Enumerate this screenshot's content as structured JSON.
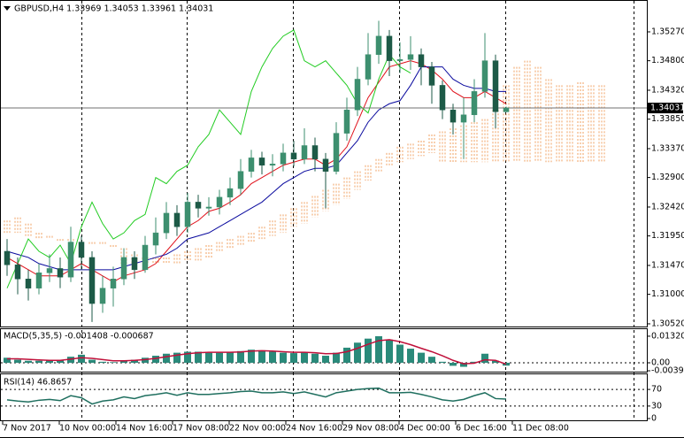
{
  "chart_data": [
    {
      "type": "candlestick",
      "title": "GBPUSD,H4  1.33969 1.34053 1.33961 1.34031",
      "open": [
        1.317,
        1.3148,
        1.3125,
        1.311,
        1.3135,
        1.3142,
        1.3128,
        1.3185,
        1.316,
        1.3085,
        1.311,
        1.3125,
        1.316,
        1.314,
        1.318,
        1.32,
        1.3232,
        1.321,
        1.325,
        1.324,
        1.3242,
        1.3258,
        1.3272,
        1.33,
        1.3322,
        1.331,
        1.3312,
        1.333,
        1.332,
        1.3342,
        1.332,
        1.33,
        1.3362,
        1.34,
        1.345,
        1.349,
        1.352,
        1.348,
        1.3482,
        1.349,
        1.347,
        1.344,
        1.34,
        1.338,
        1.3392,
        1.343,
        1.348,
        1.33969
      ],
      "high": [
        1.319,
        1.316,
        1.314,
        1.315,
        1.3165,
        1.316,
        1.321,
        1.3195,
        1.317,
        1.313,
        1.3145,
        1.3175,
        1.317,
        1.3195,
        1.3225,
        1.325,
        1.3245,
        1.3265,
        1.3262,
        1.3258,
        1.327,
        1.329,
        1.332,
        1.3335,
        1.3332,
        1.3328,
        1.3345,
        1.335,
        1.337,
        1.3355,
        1.333,
        1.338,
        1.342,
        1.347,
        1.3525,
        1.3545,
        1.353,
        1.351,
        1.352,
        1.35,
        1.3478,
        1.3448,
        1.341,
        1.342,
        1.345,
        1.3525,
        1.349,
        1.34053
      ],
      "low": [
        1.313,
        1.31,
        1.309,
        1.31,
        1.312,
        1.311,
        1.312,
        1.314,
        1.3055,
        1.307,
        1.308,
        1.3115,
        1.3125,
        1.3135,
        1.3165,
        1.319,
        1.3195,
        1.32,
        1.3225,
        1.3228,
        1.323,
        1.3245,
        1.3262,
        1.329,
        1.3295,
        1.3292,
        1.33,
        1.3308,
        1.3312,
        1.33,
        1.324,
        1.3295,
        1.335,
        1.339,
        1.344,
        1.3475,
        1.3455,
        1.346,
        1.3465,
        1.344,
        1.341,
        1.3385,
        1.336,
        1.332,
        1.338,
        1.342,
        1.337,
        1.33961
      ],
      "close": [
        1.3148,
        1.3125,
        1.311,
        1.3135,
        1.3142,
        1.3128,
        1.3185,
        1.316,
        1.3085,
        1.311,
        1.3125,
        1.316,
        1.314,
        1.318,
        1.32,
        1.3232,
        1.321,
        1.325,
        1.324,
        1.3242,
        1.3258,
        1.3272,
        1.33,
        1.3322,
        1.331,
        1.3312,
        1.333,
        1.332,
        1.3342,
        1.332,
        1.33,
        1.3362,
        1.34,
        1.345,
        1.349,
        1.352,
        1.348,
        1.3482,
        1.349,
        1.347,
        1.344,
        1.34,
        1.338,
        1.3392,
        1.343,
        1.348,
        1.3397,
        1.34031
      ],
      "up_color": "#3d8f6f",
      "down_color": "#1d5a47",
      "current_price": 1.34031,
      "ylim": [
        1.30462,
        1.35788
      ],
      "yticks": [
        {
          "value": 1.3527,
          "label": "1.35270"
        },
        {
          "value": 1.348,
          "label": "1.34800"
        },
        {
          "value": 1.3432,
          "label": "1.34320"
        },
        {
          "value": 1.3385,
          "label": "1.33850"
        },
        {
          "value": 1.3337,
          "label": "1.33370"
        },
        {
          "value": 1.329,
          "label": "1.32900"
        },
        {
          "value": 1.3242,
          "label": "1.32420"
        },
        {
          "value": 1.3195,
          "label": "1.31950"
        },
        {
          "value": 1.3147,
          "label": "1.31470"
        },
        {
          "value": 1.31,
          "label": "1.31000"
        },
        {
          "value": 1.3052,
          "label": "1.30520"
        }
      ],
      "series": [
        {
          "color": "#e0101a",
          "values": [
            1.316,
            1.315,
            1.314,
            1.313,
            1.313,
            1.313,
            1.314,
            1.315,
            1.314,
            1.313,
            1.312,
            1.313,
            1.3135,
            1.314,
            1.315,
            1.317,
            1.319,
            1.321,
            1.322,
            1.3235,
            1.324,
            1.325,
            1.3262,
            1.328,
            1.329,
            1.33,
            1.331,
            1.3315,
            1.332,
            1.332,
            1.331,
            1.332,
            1.334,
            1.338,
            1.342,
            1.3445,
            1.347,
            1.3475,
            1.348,
            1.3475,
            1.3465,
            1.345,
            1.343,
            1.342,
            1.342,
            1.343,
            1.342,
            1.341
          ]
        },
        {
          "color": "#0a0a9e",
          "values": [
            1.317,
            1.3165,
            1.316,
            1.315,
            1.3145,
            1.314,
            1.314,
            1.314,
            1.314,
            1.314,
            1.314,
            1.3145,
            1.315,
            1.3155,
            1.316,
            1.3165,
            1.3175,
            1.319,
            1.3195,
            1.32,
            1.321,
            1.322,
            1.323,
            1.324,
            1.325,
            1.3265,
            1.328,
            1.329,
            1.33,
            1.3305,
            1.3305,
            1.331,
            1.333,
            1.335,
            1.338,
            1.34,
            1.341,
            1.3415,
            1.344,
            1.347,
            1.347,
            1.347,
            1.345,
            1.344,
            1.3435,
            1.3435,
            1.343,
            1.343
          ]
        },
        {
          "color": "#22cc22",
          "values": [
            1.311,
            1.315,
            1.319,
            1.317,
            1.316,
            1.318,
            1.315,
            1.321,
            1.325,
            1.3215,
            1.319,
            1.32,
            1.322,
            1.323,
            1.329,
            1.328,
            1.33,
            1.331,
            1.334,
            1.336,
            1.34,
            1.338,
            1.336,
            1.343,
            1.347,
            1.35,
            1.352,
            1.353,
            1.348,
            1.347,
            1.348,
            1.346,
            1.344,
            1.341,
            1.3395,
            1.345,
            1.349,
            1.347,
            1.346,
            null,
            null,
            null,
            null,
            null,
            null,
            null,
            null,
            null
          ]
        }
      ],
      "cloud": {
        "color_up": "#f0a060",
        "color_down": "#d8a0d8",
        "span_a": [
          1.322,
          1.3225,
          1.3215,
          1.32,
          1.3195,
          1.319,
          1.319,
          1.3185,
          1.3185,
          1.3185,
          1.318,
          1.3175,
          1.3165,
          1.316,
          1.316,
          1.316,
          1.3165,
          1.317,
          1.3175,
          1.318,
          1.3185,
          1.319,
          1.3195,
          1.32,
          1.321,
          1.322,
          1.323,
          1.324,
          1.325,
          1.326,
          1.327,
          1.328,
          1.329,
          1.33,
          1.331,
          1.332,
          1.333,
          1.334,
          1.3345,
          1.335,
          1.336,
          1.3365,
          1.337,
          1.3375,
          1.338,
          1.3385,
          1.34,
          1.344,
          1.347,
          1.348,
          1.347,
          1.345,
          1.344,
          1.344,
          1.3445,
          1.344,
          1.344
        ],
        "span_b": [
          1.32,
          1.32,
          1.3195,
          1.319,
          1.319,
          1.3185,
          1.3185,
          1.3185,
          1.318,
          1.318,
          1.3175,
          1.315,
          1.315,
          1.315,
          1.315,
          1.315,
          1.315,
          1.3155,
          1.3155,
          1.316,
          1.317,
          1.3175,
          1.318,
          1.3185,
          1.319,
          1.3195,
          1.32,
          1.321,
          1.3215,
          1.3225,
          1.3235,
          1.3245,
          1.3255,
          1.327,
          1.3285,
          1.33,
          1.331,
          1.3315,
          1.332,
          1.3325,
          1.333,
          1.3315,
          1.3315,
          1.3315,
          1.3315,
          1.3315,
          1.3315,
          1.3315,
          1.3315,
          1.3315,
          1.3315,
          1.3315,
          1.3315,
          1.3315,
          1.3315,
          1.3315,
          1.3315
        ]
      },
      "x_labels": [
        "7 Nov 2017",
        "10 Nov 00:00",
        "14 Nov 16:00",
        "17 Nov 08:00",
        "22 Nov 00:00",
        "24 Nov 16:00",
        "29 Nov 08:00",
        "4 Dec 00:00",
        "6 Dec 16:00",
        "11 Dec 08:00"
      ]
    },
    {
      "type": "macd",
      "title": "MACD(5,35,5) -0.001408 -0.000687",
      "histogram": {
        "color": "#2a8a7a",
        "values": [
          0.0025,
          0.0015,
          0.001,
          0.001,
          0.0012,
          0.0012,
          0.003,
          0.004,
          0.0015,
          0.0005,
          0.0003,
          0.001,
          0.0015,
          0.0025,
          0.0035,
          0.0045,
          0.005,
          0.0055,
          0.0055,
          0.005,
          0.005,
          0.0052,
          0.0058,
          0.0065,
          0.0062,
          0.0055,
          0.005,
          0.0048,
          0.0052,
          0.0045,
          0.0035,
          0.005,
          0.0075,
          0.01,
          0.012,
          0.0132,
          0.0115,
          0.009,
          0.007,
          0.005,
          0.003,
          0.0005,
          -0.0015,
          -0.002,
          0.0005,
          0.0045,
          0.001,
          -0.001408
        ]
      },
      "signal": {
        "color": "#c0103a",
        "values": [
          0.002,
          0.002,
          0.0017,
          0.0014,
          0.0012,
          0.0012,
          0.0018,
          0.0025,
          0.0022,
          0.0016,
          0.001,
          0.001,
          0.0012,
          0.0016,
          0.0022,
          0.003,
          0.0038,
          0.0045,
          0.005,
          0.0052,
          0.0052,
          0.0052,
          0.0054,
          0.0058,
          0.006,
          0.0058,
          0.0055,
          0.0052,
          0.0052,
          0.005,
          0.0045,
          0.0046,
          0.0055,
          0.0072,
          0.0092,
          0.011,
          0.0115,
          0.0105,
          0.009,
          0.0072,
          0.0055,
          0.0035,
          0.0012,
          -0.0005,
          -0.0002,
          0.0015,
          0.0012,
          -0.000687
        ]
      },
      "ylim": [
        -0.0044,
        0.0167
      ],
      "yticks": [
        0.013208,
        {
          "value": 0,
          "label": "0.00"
        },
        -0.003968
      ]
    },
    {
      "type": "rsi",
      "title": "RSI(14) 46.8657",
      "color": "#1f6f5f",
      "values": [
        45,
        42,
        40,
        44,
        46,
        43,
        55,
        50,
        35,
        42,
        45,
        52,
        48,
        55,
        58,
        62,
        56,
        62,
        58,
        58,
        60,
        62,
        65,
        66,
        62,
        62,
        64,
        60,
        64,
        58,
        52,
        62,
        66,
        70,
        72,
        73,
        62,
        62,
        63,
        58,
        52,
        45,
        42,
        46,
        55,
        62,
        48,
        46.8657
      ],
      "ylim": [
        0,
        100
      ],
      "yticks": [
        70,
        30,
        0
      ],
      "levels": [
        70,
        30
      ]
    }
  ]
}
